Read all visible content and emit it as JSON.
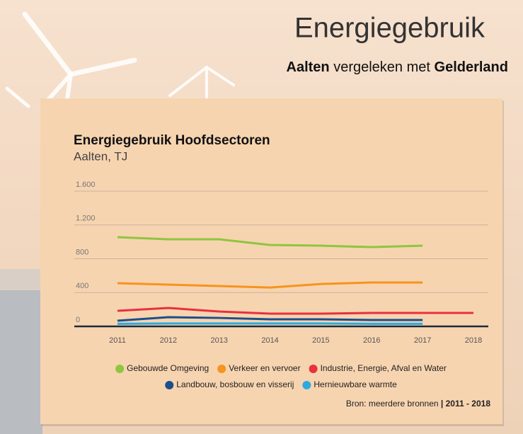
{
  "header": {
    "title": "Energiegebruik",
    "subtitle": {
      "place": "Aalten",
      "middle": "vergeleken met",
      "region": "Gelderland"
    }
  },
  "chart_data": {
    "type": "line",
    "title": "Energiegebruik Hoofdsectoren",
    "subtitle": "Aalten, TJ",
    "categories": [
      "2011",
      "2012",
      "2013",
      "2014",
      "2015",
      "2016",
      "2017",
      "2018"
    ],
    "series": [
      {
        "name": "Gebouwde Omgeving",
        "color": "#8dc63f",
        "values": [
          1055,
          1030,
          1030,
          963,
          955,
          938,
          955,
          null
        ]
      },
      {
        "name": "Verkeer en vervoer",
        "color": "#f7931e",
        "values": [
          511,
          494,
          477,
          460,
          502,
          519,
          519,
          null
        ]
      },
      {
        "name": "Industrie, Energie, Afval en Water",
        "color": "#e8303f",
        "values": [
          184,
          218,
          176,
          151,
          151,
          159,
          159,
          159
        ]
      },
      {
        "name": "Landbouw, bosbouw en visserij",
        "color": "#1b4f8a",
        "values": [
          67,
          109,
          100,
          84,
          84,
          75,
          75,
          null
        ]
      },
      {
        "name": "Hernieuwbare warmte",
        "color": "#29abe2",
        "values": [
          30,
          35,
          35,
          35,
          35,
          30,
          30,
          null
        ]
      }
    ],
    "ylim": [
      0,
      1600
    ],
    "yticks": [
      0,
      400,
      800,
      {
        "value": 1200,
        "label": "1.200"
      },
      {
        "value": 1600,
        "label": "1.600"
      }
    ],
    "grid": true,
    "source": {
      "text": "Bron: meerdere bronnen",
      "period": "| 2011 - 2018"
    }
  }
}
